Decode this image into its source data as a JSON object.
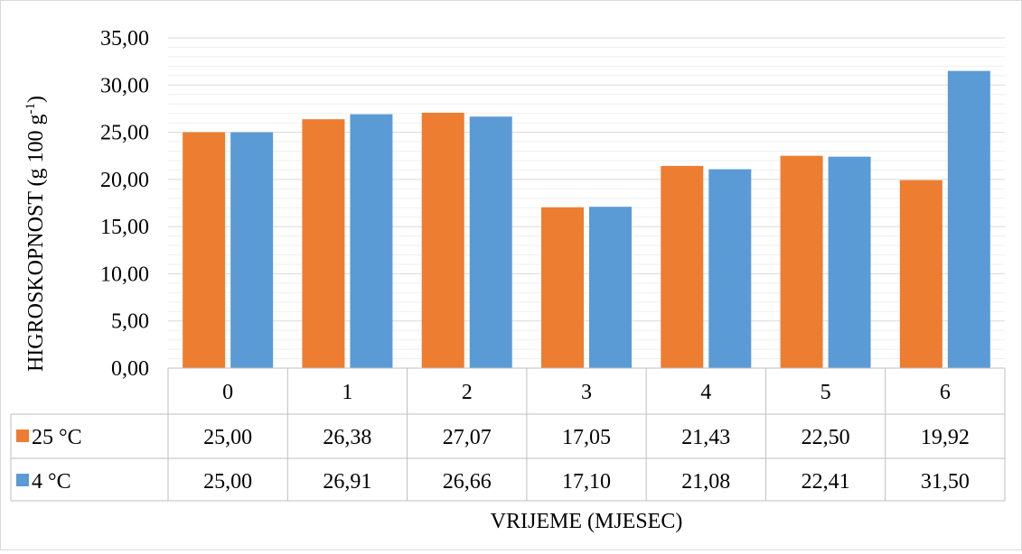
{
  "chart_data": {
    "type": "bar",
    "title": "",
    "xlabel": "VRIJEME (MJESEC)",
    "ylabel_main": "HIGROSKOPNOST (g 100 g",
    "ylabel_sup": "-1",
    "ylabel_close": ")",
    "ylim": [
      0,
      35
    ],
    "yticks": [
      "0,00",
      "5,00",
      "10,00",
      "15,00",
      "20,00",
      "25,00",
      "30,00",
      "35,00"
    ],
    "categories": [
      "0",
      "1",
      "2",
      "3",
      "4",
      "5",
      "6"
    ],
    "series": [
      {
        "name": "25 °C",
        "color": "#ed7d31",
        "values": [
          25.0,
          26.38,
          27.07,
          17.05,
          21.43,
          22.5,
          19.92
        ],
        "labels": [
          "25,00",
          "26,38",
          "27,07",
          "17,05",
          "21,43",
          "22,50",
          "19,92"
        ]
      },
      {
        "name": "4 °C",
        "color": "#5b9bd5",
        "values": [
          25.0,
          26.91,
          26.66,
          17.1,
          21.08,
          22.41,
          31.5
        ],
        "labels": [
          "25,00",
          "26,91",
          "26,66",
          "17,10",
          "21,08",
          "22,41",
          "31,50"
        ]
      }
    ],
    "grid": true,
    "legend": "data-table"
  }
}
